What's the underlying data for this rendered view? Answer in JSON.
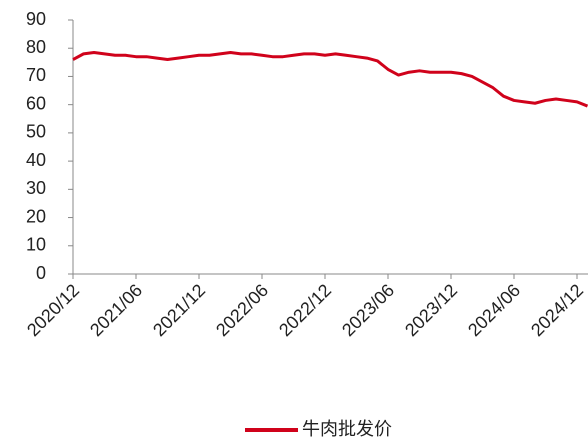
{
  "chart_data": {
    "type": "line",
    "categories": [
      "2020/12",
      null,
      null,
      null,
      null,
      null,
      "2021/06",
      null,
      null,
      null,
      null,
      null,
      "2021/12",
      null,
      null,
      null,
      null,
      null,
      "2022/06",
      null,
      null,
      null,
      null,
      null,
      "2022/12",
      null,
      null,
      null,
      null,
      null,
      "2023/06",
      null,
      null,
      null,
      null,
      null,
      "2023/12",
      null,
      null,
      null,
      null,
      null,
      "2024/06",
      null,
      null,
      null,
      null,
      null,
      "2024/12",
      null
    ],
    "series": [
      {
        "name": "牛肉批发价",
        "color": "#d0021b",
        "values": [
          76,
          78,
          78.5,
          78,
          77.5,
          77.5,
          77,
          77,
          76.5,
          76,
          76.5,
          77,
          77.5,
          77.5,
          78,
          78.5,
          78,
          78,
          77.5,
          77,
          77,
          77.5,
          78,
          78,
          77.5,
          78,
          77.5,
          77,
          76.5,
          75.5,
          72.5,
          70.5,
          71.5,
          72,
          71.5,
          71.5,
          71.5,
          71,
          70,
          68,
          66,
          63,
          61.5,
          61,
          60.5,
          61.5,
          62,
          61.5,
          61,
          59.5
        ]
      }
    ],
    "ylim": [
      0,
      90
    ],
    "yticks": [
      0,
      10,
      20,
      30,
      40,
      50,
      60,
      70,
      80,
      90
    ],
    "legend": "bottom"
  }
}
